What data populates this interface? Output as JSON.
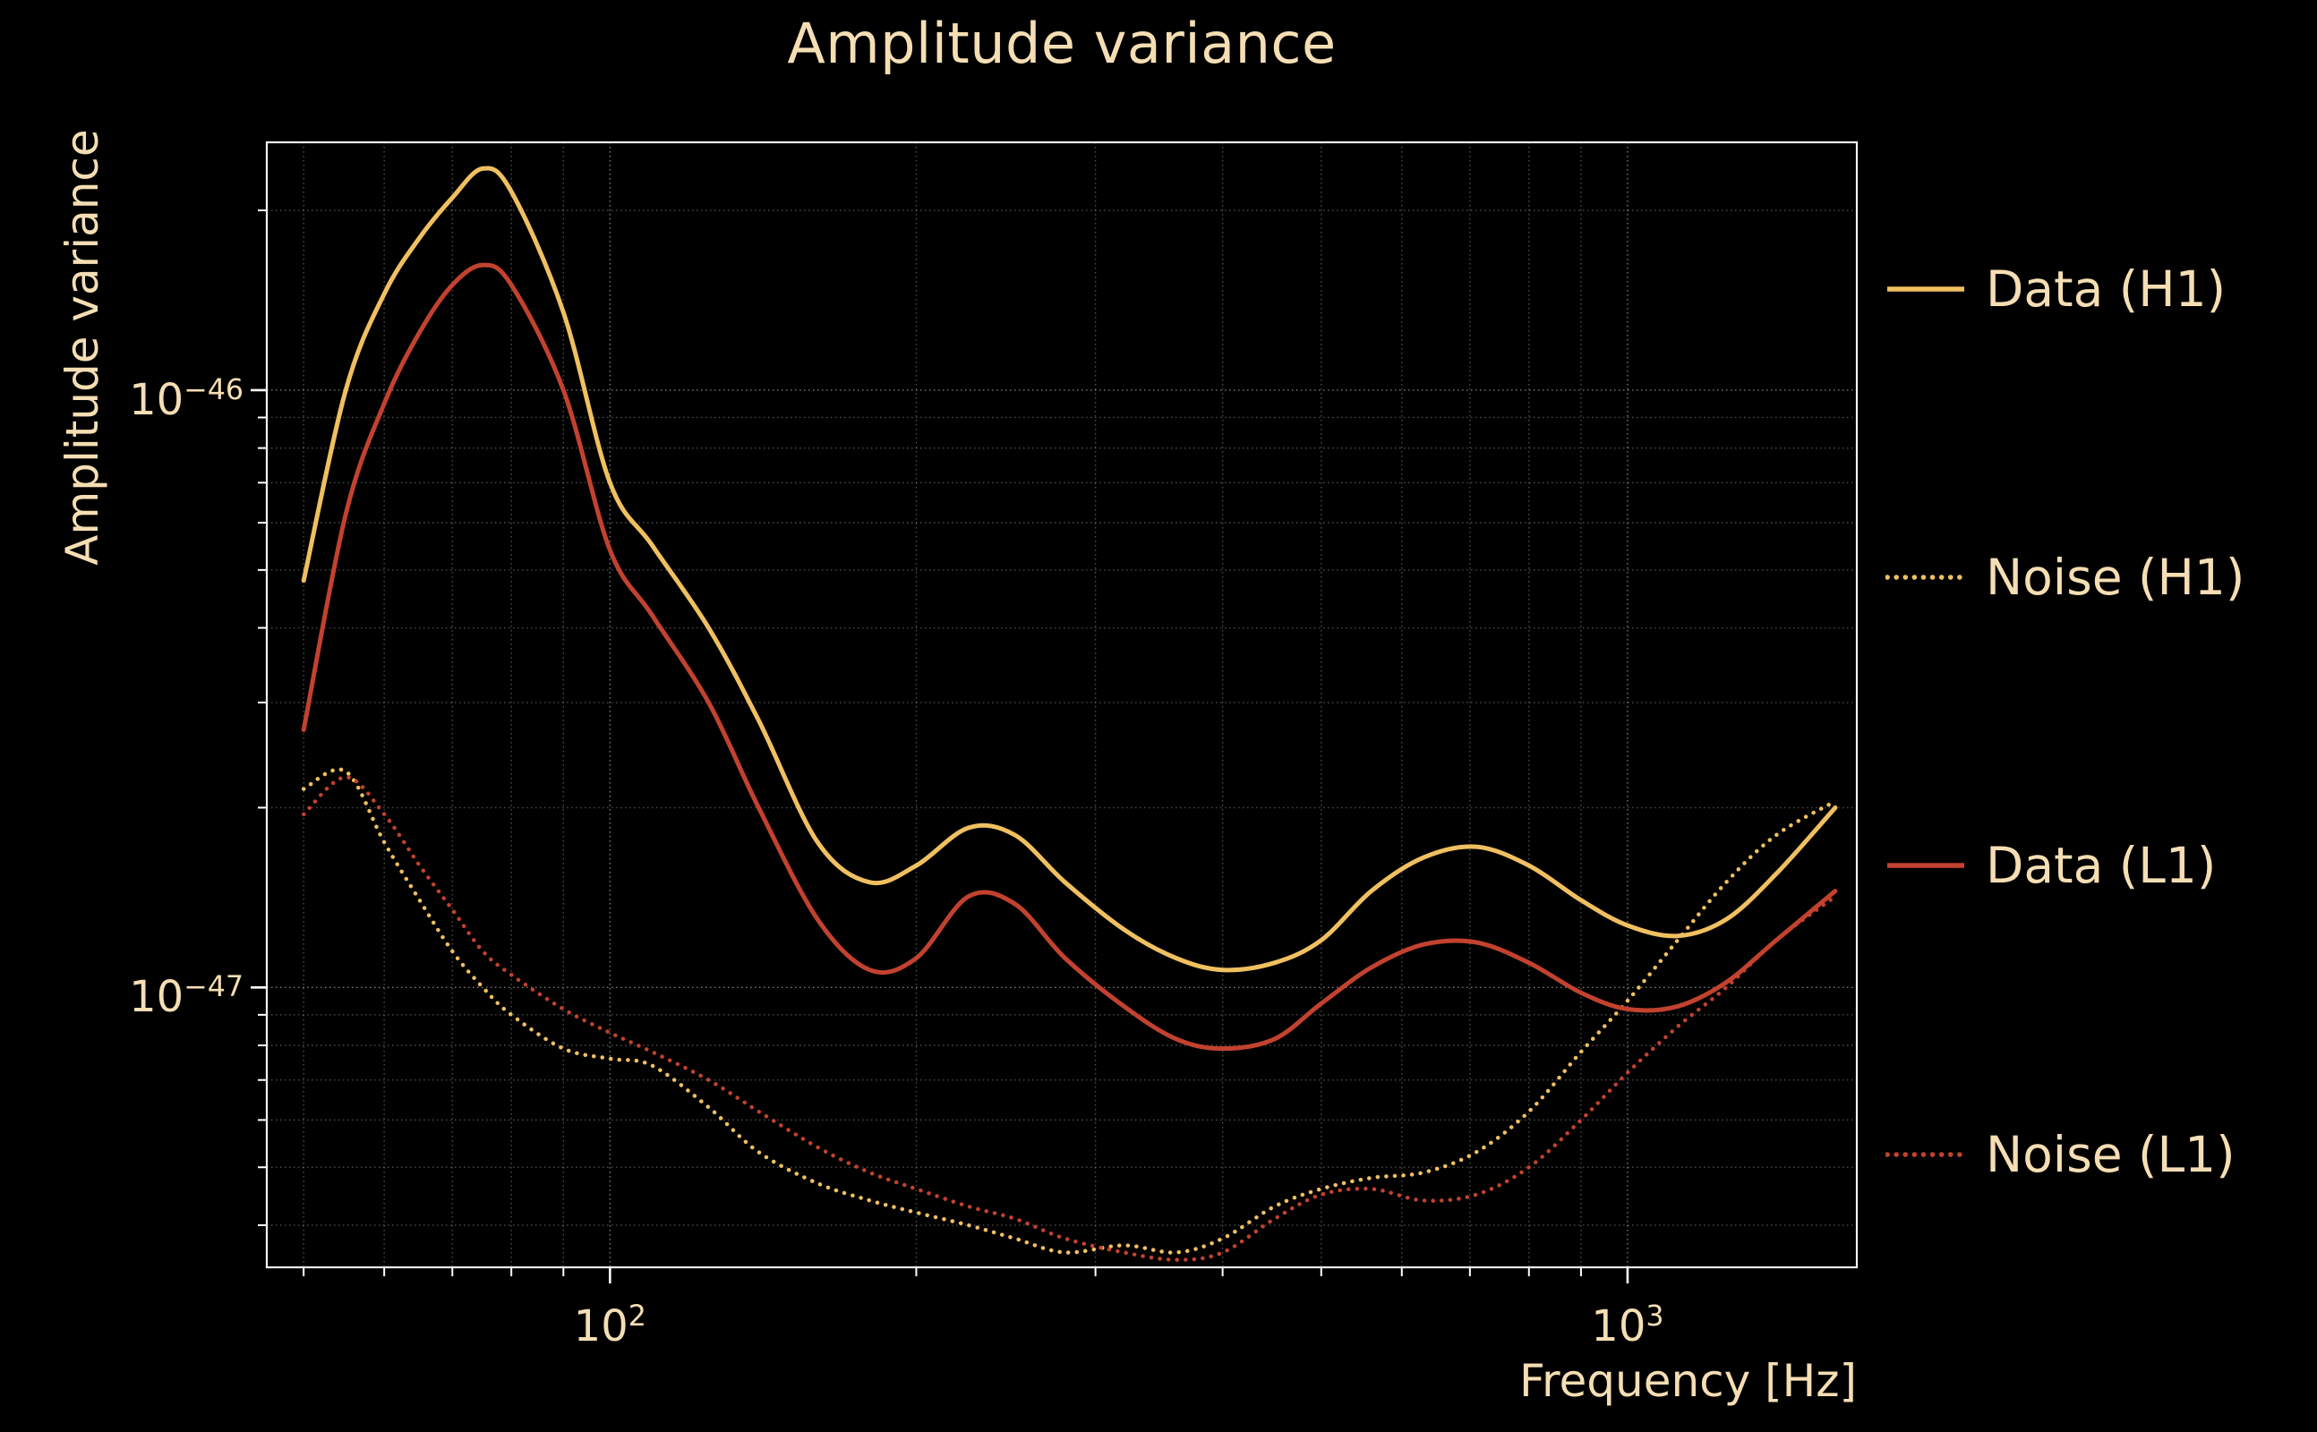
{
  "colors": {
    "background": "#000000",
    "text": "#f5deb3",
    "grid": "#ffffff",
    "h1": "#f0c060",
    "l1": "#c2422f"
  },
  "chart_data": {
    "type": "line",
    "title": "Amplitude variance",
    "xlabel": "Frequency [Hz]",
    "ylabel": "Amplitude variance",
    "xscale": "log",
    "yscale": "log",
    "xlim": [
      46,
      1680
    ],
    "ylim": [
      3.4e-48,
      2.6e-46
    ],
    "grid": true,
    "legend_position": "right-outside",
    "x_ticks": [
      100,
      1000
    ],
    "x_tick_labels": [
      {
        "base": "10",
        "exp": "2"
      },
      {
        "base": "10",
        "exp": "3"
      }
    ],
    "y_ticks": [
      1e-46,
      1e-47
    ],
    "y_tick_labels": [
      {
        "base": "10",
        "exp": "−46"
      },
      {
        "base": "10",
        "exp": "−47"
      }
    ],
    "x": [
      50,
      55,
      60,
      65,
      70,
      75,
      80,
      90,
      100,
      110,
      125,
      140,
      160,
      180,
      200,
      225,
      250,
      280,
      320,
      360,
      400,
      450,
      500,
      560,
      630,
      710,
      800,
      900,
      1000,
      1120,
      1250,
      1400,
      1600
    ],
    "series": [
      {
        "name": "Data (H1)",
        "color": "#f0c060",
        "style": "solid",
        "values": [
          4.8e-47,
          1e-46,
          1.45e-46,
          1.8e-46,
          2.1e-46,
          2.35e-46,
          2.15e-46,
          1.35e-46,
          7e-47,
          5.5e-47,
          4e-47,
          2.8e-47,
          1.75e-47,
          1.5e-47,
          1.6e-47,
          1.85e-47,
          1.8e-47,
          1.5e-47,
          1.25e-47,
          1.12e-47,
          1.07e-47,
          1.1e-47,
          1.2e-47,
          1.45e-47,
          1.65e-47,
          1.72e-47,
          1.6e-47,
          1.4e-47,
          1.27e-47,
          1.22e-47,
          1.3e-47,
          1.55e-47,
          2e-47
        ]
      },
      {
        "name": "Noise (H1)",
        "color": "#f0c060",
        "style": "dotted",
        "values": [
          2.15e-47,
          2.3e-47,
          1.75e-47,
          1.4e-47,
          1.15e-47,
          1e-47,
          9e-48,
          7.9e-48,
          7.6e-48,
          7.4e-48,
          6.3e-48,
          5.3e-48,
          4.7e-48,
          4.4e-48,
          4.2e-48,
          4e-48,
          3.8e-48,
          3.6e-48,
          3.7e-48,
          3.6e-48,
          3.8e-48,
          4.3e-48,
          4.6e-48,
          4.8e-48,
          4.9e-48,
          5.3e-48,
          6.2e-48,
          7.8e-48,
          9.5e-48,
          1.2e-47,
          1.5e-47,
          1.8e-47,
          2.05e-47
        ]
      },
      {
        "name": "Data (L1)",
        "color": "#c2422f",
        "style": "solid",
        "values": [
          2.7e-47,
          6.2e-47,
          9.5e-47,
          1.25e-46,
          1.5e-46,
          1.62e-46,
          1.5e-46,
          1e-46,
          5.4e-47,
          4.2e-47,
          3e-47,
          2e-47,
          1.3e-47,
          1.07e-47,
          1.12e-47,
          1.42e-47,
          1.38e-47,
          1.12e-47,
          9.3e-48,
          8.2e-48,
          7.9e-48,
          8.2e-48,
          9.4e-48,
          1.08e-47,
          1.18e-47,
          1.19e-47,
          1.1e-47,
          9.8e-48,
          9.2e-48,
          9.3e-48,
          1.02e-47,
          1.2e-47,
          1.45e-47
        ]
      },
      {
        "name": "Noise (L1)",
        "color": "#c2422f",
        "style": "dotted",
        "values": [
          1.95e-47,
          2.25e-47,
          1.95e-47,
          1.6e-47,
          1.35e-47,
          1.15e-47,
          1.05e-47,
          9.2e-48,
          8.4e-48,
          7.8e-48,
          7e-48,
          6.2e-48,
          5.4e-48,
          4.9e-48,
          4.6e-48,
          4.3e-48,
          4.1e-48,
          3.8e-48,
          3.6e-48,
          3.5e-48,
          3.6e-48,
          4.1e-48,
          4.5e-48,
          4.6e-48,
          4.4e-48,
          4.5e-48,
          5e-48,
          6e-48,
          7.2e-48,
          8.6e-48,
          1e-47,
          1.2e-47,
          1.42e-47
        ]
      }
    ]
  }
}
